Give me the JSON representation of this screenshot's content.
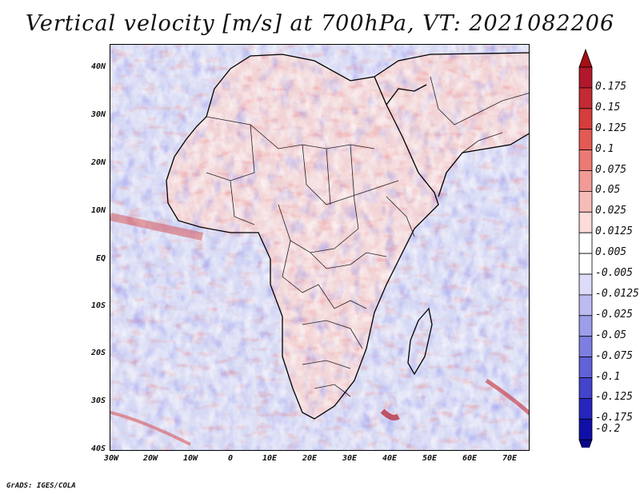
{
  "title": "Vertical velocity [m/s] at 700hPa, VT: 2021082206",
  "credit": "GrADS: IGES/COLA",
  "map": {
    "variable": "Vertical velocity",
    "units": "m/s",
    "level": "700hPa",
    "valid_time": "2021082206",
    "lat_labels": [
      "40N",
      "30N",
      "20N",
      "10N",
      "EQ",
      "10S",
      "20S",
      "30S",
      "40S"
    ],
    "lon_labels": [
      "30W",
      "20W",
      "10W",
      "0",
      "10E",
      "20E",
      "30E",
      "40E",
      "50E",
      "60E",
      "70E"
    ]
  },
  "colorbar": {
    "levels": [
      {
        "label": "0.175",
        "color": "#b2182b"
      },
      {
        "label": "0.15",
        "color": "#c42a33"
      },
      {
        "label": "0.125",
        "color": "#d63d3d"
      },
      {
        "label": "0.1",
        "color": "#e35a55"
      },
      {
        "label": "0.075",
        "color": "#ec7a74"
      },
      {
        "label": "0.05",
        "color": "#f29b96"
      },
      {
        "label": "0.025",
        "color": "#f7bcb8"
      },
      {
        "label": "0.0125",
        "color": "#fbdcda"
      },
      {
        "label": "0.005",
        "color": "#ffffff"
      },
      {
        "label": "-0.005",
        "color": "#ffffff"
      },
      {
        "label": "-0.0125",
        "color": "#dcdcf8"
      },
      {
        "label": "-0.025",
        "color": "#bcbcf2"
      },
      {
        "label": "-0.05",
        "color": "#9d9dea"
      },
      {
        "label": "-0.075",
        "color": "#7e7ee2"
      },
      {
        "label": "-0.1",
        "color": "#6161d8"
      },
      {
        "label": "-0.125",
        "color": "#4343cc"
      },
      {
        "label": "-0.175",
        "color": "#2626bd"
      },
      {
        "label": "-0.2",
        "color": "#1010a8"
      }
    ],
    "top_arrow_color": "#a50f15",
    "bottom_arrow_color": "#08088a"
  },
  "colors": {
    "ocean_base": "#dde0f6",
    "land_base": "#f3dede",
    "coast": "#000000"
  }
}
